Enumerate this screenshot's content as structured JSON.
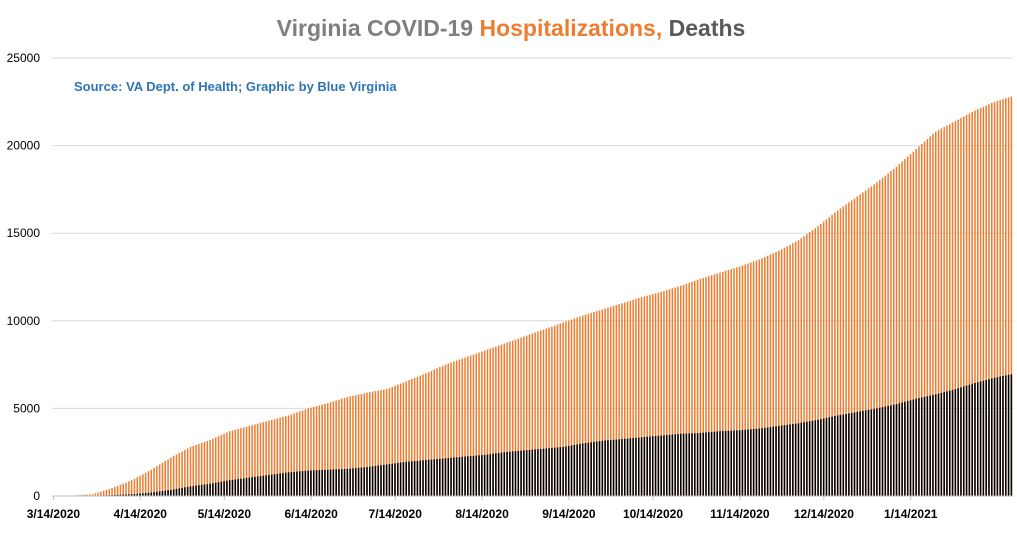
{
  "chart_data": {
    "type": "bar",
    "title": {
      "parts": [
        {
          "text": "Virginia COVID-19 ",
          "color": "#7f7f7f"
        },
        {
          "text": "Hospitalizations,",
          "color": "#ed7d31"
        },
        {
          "text": " Deaths",
          "color": "#595959"
        }
      ]
    },
    "annotation": {
      "text": "Source: VA Dept. of Health; Graphic by Blue Virginia",
      "color": "#2e75b6"
    },
    "x_axis": {
      "type": "date",
      "range": [
        "2020-03-14",
        "2021-02-19"
      ],
      "tick_labels": [
        "3/14/2020",
        "4/14/2020",
        "5/14/2020",
        "6/14/2020",
        "7/14/2020",
        "8/14/2020",
        "9/14/2020",
        "10/14/2020",
        "11/14/2020",
        "12/14/2020",
        "1/14/2021"
      ],
      "tick_dates": [
        "2020-03-14",
        "2020-04-14",
        "2020-05-14",
        "2020-06-14",
        "2020-07-14",
        "2020-08-14",
        "2020-09-14",
        "2020-10-14",
        "2020-11-14",
        "2020-12-14",
        "2021-01-14"
      ]
    },
    "y_axis": {
      "range": [
        0,
        25000
      ],
      "ticks": [
        0,
        5000,
        10000,
        15000,
        20000,
        25000
      ],
      "grid": true
    },
    "bar_frequency": "daily, overlapping",
    "series": [
      {
        "name": "Hospitalizations",
        "color": "#ed7d31",
        "points": [
          [
            "2020-03-14",
            20
          ],
          [
            "2020-03-21",
            30
          ],
          [
            "2020-03-28",
            100
          ],
          [
            "2020-04-04",
            450
          ],
          [
            "2020-04-11",
            900
          ],
          [
            "2020-04-18",
            1500
          ],
          [
            "2020-04-25",
            2200
          ],
          [
            "2020-05-02",
            2800
          ],
          [
            "2020-05-09",
            3200
          ],
          [
            "2020-05-16",
            3700
          ],
          [
            "2020-05-23",
            4000
          ],
          [
            "2020-05-30",
            4300
          ],
          [
            "2020-06-06",
            4600
          ],
          [
            "2020-06-13",
            5000
          ],
          [
            "2020-06-20",
            5300
          ],
          [
            "2020-06-27",
            5650
          ],
          [
            "2020-07-04",
            5900
          ],
          [
            "2020-07-11",
            6100
          ],
          [
            "2020-07-18",
            6550
          ],
          [
            "2020-07-25",
            7000
          ],
          [
            "2020-08-01",
            7500
          ],
          [
            "2020-08-08",
            7900
          ],
          [
            "2020-08-15",
            8300
          ],
          [
            "2020-08-22",
            8700
          ],
          [
            "2020-08-29",
            9100
          ],
          [
            "2020-09-05",
            9500
          ],
          [
            "2020-09-12",
            9900
          ],
          [
            "2020-09-19",
            10300
          ],
          [
            "2020-09-26",
            10650
          ],
          [
            "2020-10-03",
            11000
          ],
          [
            "2020-10-10",
            11350
          ],
          [
            "2020-10-17",
            11650
          ],
          [
            "2020-10-24",
            12000
          ],
          [
            "2020-10-31",
            12400
          ],
          [
            "2020-11-07",
            12750
          ],
          [
            "2020-11-14",
            13100
          ],
          [
            "2020-11-21",
            13500
          ],
          [
            "2020-11-28",
            14000
          ],
          [
            "2020-12-05",
            14600
          ],
          [
            "2020-12-12",
            15400
          ],
          [
            "2020-12-19",
            16300
          ],
          [
            "2020-12-26",
            17100
          ],
          [
            "2021-01-02",
            17900
          ],
          [
            "2021-01-09",
            18800
          ],
          [
            "2021-01-16",
            19800
          ],
          [
            "2021-01-23",
            20800
          ],
          [
            "2021-01-30",
            21400
          ],
          [
            "2021-02-06",
            22000
          ],
          [
            "2021-02-13",
            22500
          ],
          [
            "2021-02-19",
            22800
          ]
        ]
      },
      {
        "name": "Deaths",
        "color": "#000000",
        "points": [
          [
            "2020-03-14",
            0
          ],
          [
            "2020-03-28",
            10
          ],
          [
            "2020-04-04",
            50
          ],
          [
            "2020-04-11",
            100
          ],
          [
            "2020-04-18",
            200
          ],
          [
            "2020-04-25",
            350
          ],
          [
            "2020-05-02",
            550
          ],
          [
            "2020-05-09",
            700
          ],
          [
            "2020-05-16",
            900
          ],
          [
            "2020-05-23",
            1050
          ],
          [
            "2020-05-30",
            1200
          ],
          [
            "2020-06-06",
            1350
          ],
          [
            "2020-06-13",
            1450
          ],
          [
            "2020-06-20",
            1500
          ],
          [
            "2020-06-27",
            1550
          ],
          [
            "2020-07-04",
            1650
          ],
          [
            "2020-07-11",
            1800
          ],
          [
            "2020-07-18",
            1950
          ],
          [
            "2020-07-25",
            2050
          ],
          [
            "2020-08-01",
            2150
          ],
          [
            "2020-08-08",
            2250
          ],
          [
            "2020-08-15",
            2350
          ],
          [
            "2020-08-22",
            2500
          ],
          [
            "2020-08-29",
            2600
          ],
          [
            "2020-09-05",
            2700
          ],
          [
            "2020-09-12",
            2800
          ],
          [
            "2020-09-19",
            3000
          ],
          [
            "2020-09-26",
            3150
          ],
          [
            "2020-10-03",
            3250
          ],
          [
            "2020-10-10",
            3350
          ],
          [
            "2020-10-17",
            3450
          ],
          [
            "2020-10-24",
            3550
          ],
          [
            "2020-10-31",
            3600
          ],
          [
            "2020-11-07",
            3700
          ],
          [
            "2020-11-14",
            3750
          ],
          [
            "2020-11-21",
            3850
          ],
          [
            "2020-11-28",
            4000
          ],
          [
            "2020-12-05",
            4150
          ],
          [
            "2020-12-12",
            4350
          ],
          [
            "2020-12-19",
            4600
          ],
          [
            "2020-12-26",
            4800
          ],
          [
            "2021-01-02",
            5000
          ],
          [
            "2021-01-09",
            5250
          ],
          [
            "2021-01-16",
            5550
          ],
          [
            "2021-01-23",
            5800
          ],
          [
            "2021-01-30",
            6100
          ],
          [
            "2021-02-06",
            6450
          ],
          [
            "2021-02-13",
            6750
          ],
          [
            "2021-02-19",
            6950
          ]
        ]
      }
    ]
  }
}
